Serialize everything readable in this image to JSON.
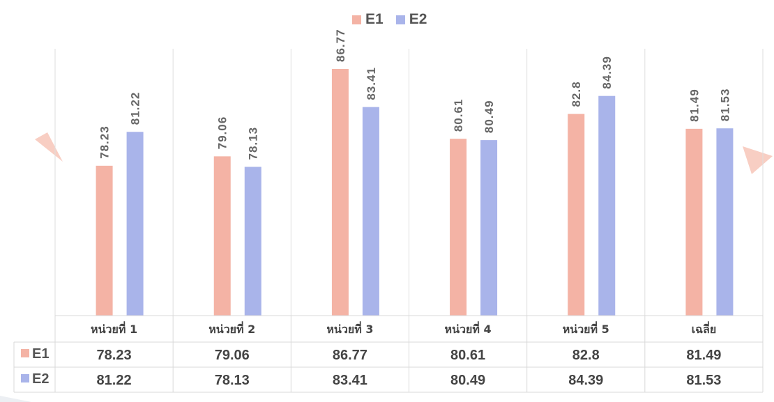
{
  "chart_data": {
    "type": "bar",
    "categories": [
      "หน่วยที่ 1",
      "หน่วยที่ 2",
      "หน่วยที่ 3",
      "หน่วยที่ 4",
      "หน่วยที่ 5",
      "เฉลี่ย"
    ],
    "series": [
      {
        "name": "E1",
        "values": [
          78.23,
          79.06,
          86.77,
          80.61,
          82.8,
          81.49
        ],
        "color": "#f4b3a5"
      },
      {
        "name": "E2",
        "values": [
          81.22,
          78.13,
          83.41,
          80.49,
          84.39,
          81.53
        ],
        "color": "#a9b4ea"
      }
    ],
    "value_labels": {
      "E1": [
        "78.23",
        "79.06",
        "86.77",
        "80.61",
        "82.8",
        "81.49"
      ],
      "E2": [
        "81.22",
        "78.13",
        "83.41",
        "80.49",
        "84.39",
        "81.53"
      ]
    },
    "ylim": [
      65,
      88
    ],
    "grid": false,
    "legend_position": "top-center",
    "data_table": true
  }
}
